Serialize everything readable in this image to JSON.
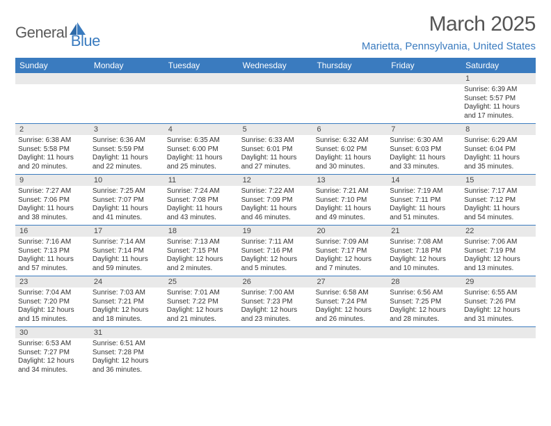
{
  "logo": {
    "part1": "General",
    "part2": "Blue"
  },
  "title": "March 2025",
  "subtitle": "Marietta, Pennsylvania, United States",
  "colors": {
    "brand_blue": "#3a7bbf",
    "header_gray": "#e9e9e9",
    "text_gray": "#555",
    "body_text": "#333",
    "white": "#ffffff"
  },
  "days_of_week": [
    "Sunday",
    "Monday",
    "Tuesday",
    "Wednesday",
    "Thursday",
    "Friday",
    "Saturday"
  ],
  "weeks": [
    {
      "nums": [
        "",
        "",
        "",
        "",
        "",
        "",
        "1"
      ],
      "info": [
        null,
        null,
        null,
        null,
        null,
        null,
        {
          "sunrise": "Sunrise: 6:39 AM",
          "sunset": "Sunset: 5:57 PM",
          "daylight": "Daylight: 11 hours and 17 minutes."
        }
      ]
    },
    {
      "nums": [
        "2",
        "3",
        "4",
        "5",
        "6",
        "7",
        "8"
      ],
      "info": [
        {
          "sunrise": "Sunrise: 6:38 AM",
          "sunset": "Sunset: 5:58 PM",
          "daylight": "Daylight: 11 hours and 20 minutes."
        },
        {
          "sunrise": "Sunrise: 6:36 AM",
          "sunset": "Sunset: 5:59 PM",
          "daylight": "Daylight: 11 hours and 22 minutes."
        },
        {
          "sunrise": "Sunrise: 6:35 AM",
          "sunset": "Sunset: 6:00 PM",
          "daylight": "Daylight: 11 hours and 25 minutes."
        },
        {
          "sunrise": "Sunrise: 6:33 AM",
          "sunset": "Sunset: 6:01 PM",
          "daylight": "Daylight: 11 hours and 27 minutes."
        },
        {
          "sunrise": "Sunrise: 6:32 AM",
          "sunset": "Sunset: 6:02 PM",
          "daylight": "Daylight: 11 hours and 30 minutes."
        },
        {
          "sunrise": "Sunrise: 6:30 AM",
          "sunset": "Sunset: 6:03 PM",
          "daylight": "Daylight: 11 hours and 33 minutes."
        },
        {
          "sunrise": "Sunrise: 6:29 AM",
          "sunset": "Sunset: 6:04 PM",
          "daylight": "Daylight: 11 hours and 35 minutes."
        }
      ]
    },
    {
      "nums": [
        "9",
        "10",
        "11",
        "12",
        "13",
        "14",
        "15"
      ],
      "info": [
        {
          "sunrise": "Sunrise: 7:27 AM",
          "sunset": "Sunset: 7:06 PM",
          "daylight": "Daylight: 11 hours and 38 minutes."
        },
        {
          "sunrise": "Sunrise: 7:25 AM",
          "sunset": "Sunset: 7:07 PM",
          "daylight": "Daylight: 11 hours and 41 minutes."
        },
        {
          "sunrise": "Sunrise: 7:24 AM",
          "sunset": "Sunset: 7:08 PM",
          "daylight": "Daylight: 11 hours and 43 minutes."
        },
        {
          "sunrise": "Sunrise: 7:22 AM",
          "sunset": "Sunset: 7:09 PM",
          "daylight": "Daylight: 11 hours and 46 minutes."
        },
        {
          "sunrise": "Sunrise: 7:21 AM",
          "sunset": "Sunset: 7:10 PM",
          "daylight": "Daylight: 11 hours and 49 minutes."
        },
        {
          "sunrise": "Sunrise: 7:19 AM",
          "sunset": "Sunset: 7:11 PM",
          "daylight": "Daylight: 11 hours and 51 minutes."
        },
        {
          "sunrise": "Sunrise: 7:17 AM",
          "sunset": "Sunset: 7:12 PM",
          "daylight": "Daylight: 11 hours and 54 minutes."
        }
      ]
    },
    {
      "nums": [
        "16",
        "17",
        "18",
        "19",
        "20",
        "21",
        "22"
      ],
      "info": [
        {
          "sunrise": "Sunrise: 7:16 AM",
          "sunset": "Sunset: 7:13 PM",
          "daylight": "Daylight: 11 hours and 57 minutes."
        },
        {
          "sunrise": "Sunrise: 7:14 AM",
          "sunset": "Sunset: 7:14 PM",
          "daylight": "Daylight: 11 hours and 59 minutes."
        },
        {
          "sunrise": "Sunrise: 7:13 AM",
          "sunset": "Sunset: 7:15 PM",
          "daylight": "Daylight: 12 hours and 2 minutes."
        },
        {
          "sunrise": "Sunrise: 7:11 AM",
          "sunset": "Sunset: 7:16 PM",
          "daylight": "Daylight: 12 hours and 5 minutes."
        },
        {
          "sunrise": "Sunrise: 7:09 AM",
          "sunset": "Sunset: 7:17 PM",
          "daylight": "Daylight: 12 hours and 7 minutes."
        },
        {
          "sunrise": "Sunrise: 7:08 AM",
          "sunset": "Sunset: 7:18 PM",
          "daylight": "Daylight: 12 hours and 10 minutes."
        },
        {
          "sunrise": "Sunrise: 7:06 AM",
          "sunset": "Sunset: 7:19 PM",
          "daylight": "Daylight: 12 hours and 13 minutes."
        }
      ]
    },
    {
      "nums": [
        "23",
        "24",
        "25",
        "26",
        "27",
        "28",
        "29"
      ],
      "info": [
        {
          "sunrise": "Sunrise: 7:04 AM",
          "sunset": "Sunset: 7:20 PM",
          "daylight": "Daylight: 12 hours and 15 minutes."
        },
        {
          "sunrise": "Sunrise: 7:03 AM",
          "sunset": "Sunset: 7:21 PM",
          "daylight": "Daylight: 12 hours and 18 minutes."
        },
        {
          "sunrise": "Sunrise: 7:01 AM",
          "sunset": "Sunset: 7:22 PM",
          "daylight": "Daylight: 12 hours and 21 minutes."
        },
        {
          "sunrise": "Sunrise: 7:00 AM",
          "sunset": "Sunset: 7:23 PM",
          "daylight": "Daylight: 12 hours and 23 minutes."
        },
        {
          "sunrise": "Sunrise: 6:58 AM",
          "sunset": "Sunset: 7:24 PM",
          "daylight": "Daylight: 12 hours and 26 minutes."
        },
        {
          "sunrise": "Sunrise: 6:56 AM",
          "sunset": "Sunset: 7:25 PM",
          "daylight": "Daylight: 12 hours and 28 minutes."
        },
        {
          "sunrise": "Sunrise: 6:55 AM",
          "sunset": "Sunset: 7:26 PM",
          "daylight": "Daylight: 12 hours and 31 minutes."
        }
      ]
    },
    {
      "nums": [
        "30",
        "31",
        "",
        "",
        "",
        "",
        ""
      ],
      "info": [
        {
          "sunrise": "Sunrise: 6:53 AM",
          "sunset": "Sunset: 7:27 PM",
          "daylight": "Daylight: 12 hours and 34 minutes."
        },
        {
          "sunrise": "Sunrise: 6:51 AM",
          "sunset": "Sunset: 7:28 PM",
          "daylight": "Daylight: 12 hours and 36 minutes."
        },
        null,
        null,
        null,
        null,
        null
      ]
    }
  ]
}
